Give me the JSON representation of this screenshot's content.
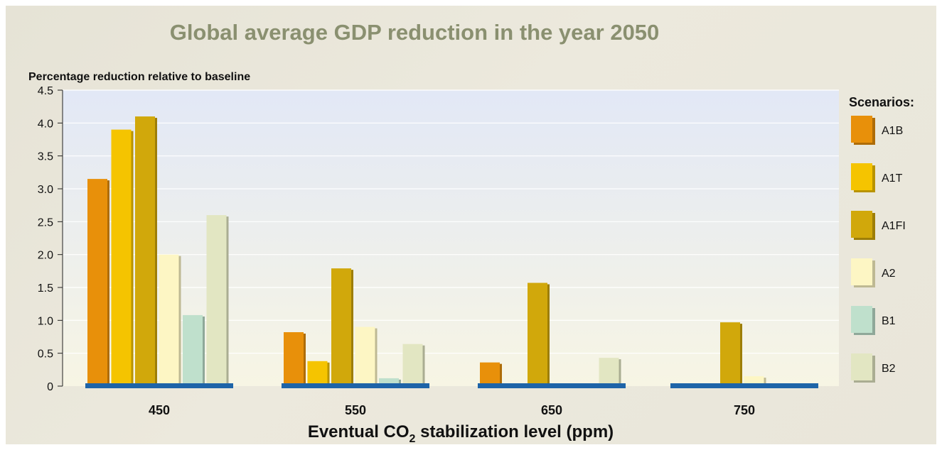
{
  "chart_data": {
    "type": "bar",
    "title": "Global average GDP reduction in the year 2050",
    "ylabel": "Percentage reduction relative to baseline",
    "xlabel_main": "Eventual CO",
    "xlabel_sub": "2",
    "xlabel_rest": " stabilization level (ppm)",
    "categories": [
      "450",
      "550",
      "650",
      "750"
    ],
    "ylim": [
      0,
      4.5
    ],
    "yticks": [
      "0",
      "0.5",
      "1.0",
      "1.5",
      "2.0",
      "2.5",
      "3.0",
      "3.5",
      "4.0",
      "4.5"
    ],
    "grid": true,
    "legend": {
      "title": "Scenarios:",
      "position": "right"
    },
    "series": [
      {
        "name": "A1B",
        "color": "#e8900a",
        "values": [
          3.15,
          0.82,
          0.36,
          0.0
        ]
      },
      {
        "name": "A1T",
        "color": "#f5c400",
        "values": [
          3.9,
          0.38,
          0.0,
          0.0
        ]
      },
      {
        "name": "A1FI",
        "color": "#d1a80b",
        "values": [
          4.1,
          1.79,
          1.57,
          0.97
        ]
      },
      {
        "name": "A2",
        "color": "#fdf6c4",
        "values": [
          2.0,
          0.9,
          0.0,
          0.15
        ]
      },
      {
        "name": "B1",
        "color": "#bfe0cc",
        "values": [
          1.08,
          0.12,
          0.0,
          0.0
        ]
      },
      {
        "name": "B2",
        "color": "#e2e6c2",
        "values": [
          2.6,
          0.64,
          0.43,
          0.0
        ]
      }
    ],
    "baseline_color": "#1e64a8"
  }
}
